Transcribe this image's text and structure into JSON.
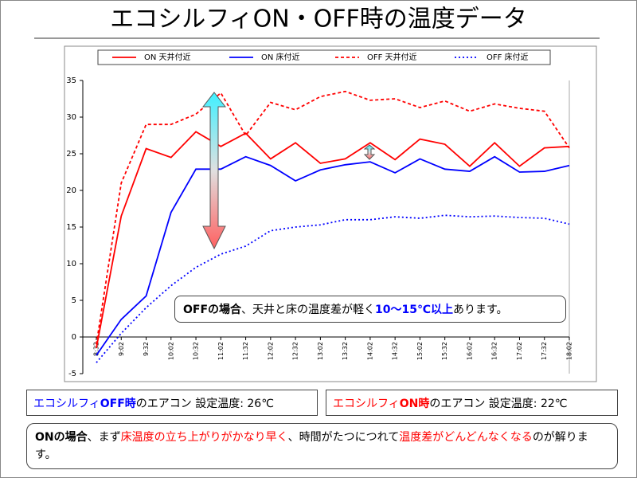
{
  "chart_data": {
    "type": "line",
    "title": "エコシルフィON・OFF時の温度データ",
    "categories": [
      "8:32",
      "9:02",
      "9:32",
      "10:02",
      "10:32",
      "11:02",
      "11:32",
      "12:02",
      "12:32",
      "13:02",
      "13:32",
      "14:02",
      "14:32",
      "15:02",
      "15:32",
      "16:02",
      "16:32",
      "17:02",
      "17:32",
      "18:02"
    ],
    "series": [
      {
        "name": "ON 天井付近",
        "color": "#ff0000",
        "dash": "solid",
        "values": [
          -1.5,
          16.5,
          25.7,
          24.5,
          28,
          26,
          27.8,
          24.3,
          26.5,
          23.7,
          24.3,
          26.5,
          24.2,
          27,
          26.3,
          23.3,
          26.5,
          23.3,
          25.8,
          26
        ]
      },
      {
        "name": "ON 床付近",
        "color": "#0000ff",
        "dash": "solid",
        "values": [
          -2.5,
          2.4,
          5.6,
          17,
          22.9,
          22.9,
          24.6,
          23.4,
          21.3,
          22.8,
          23.5,
          23.9,
          22.4,
          24.3,
          22.9,
          22.6,
          24.6,
          22.5,
          22.6,
          23.4
        ]
      },
      {
        "name": "OFF 天井付近",
        "color": "#ff0000",
        "dash": "dash",
        "values": [
          -1,
          21,
          29,
          29,
          30.4,
          33.3,
          27.5,
          32,
          31,
          32.8,
          33.5,
          32.3,
          32.5,
          31.3,
          32.2,
          30.8,
          31.8,
          31.2,
          30.8,
          25.8
        ]
      },
      {
        "name": "OFF 床付近",
        "color": "#0000ff",
        "dash": "dot",
        "values": [
          -3.5,
          0.5,
          4,
          7,
          9.5,
          11.3,
          12.4,
          14.5,
          15,
          15.3,
          16,
          16,
          16.4,
          16.2,
          16.6,
          16.4,
          16.5,
          16.3,
          16.2,
          15.4
        ]
      }
    ],
    "ylim": [
      -5,
      35
    ],
    "yticks": [
      -5,
      0,
      5,
      10,
      15,
      20,
      25,
      30,
      35
    ],
    "grid": false,
    "legend": "top",
    "annotation": [
      "OFFの場合",
      "、天井と床の温度差が軽く",
      "10～15℃以上",
      "あります。"
    ]
  },
  "boxes": [
    [
      "エコシルフィ",
      "OFF時",
      "のエアコン 設定温度: 26℃"
    ],
    [
      "エコシルフィ",
      "ON時",
      "のエアコン 設定温度: 22℃"
    ]
  ],
  "note": [
    "ONの場合",
    "、まず",
    "床温度の立ち上がりがかなり早く",
    "、時間がたつにつれて",
    "温度差がどんどんなくなる",
    "のが解ります。"
  ]
}
